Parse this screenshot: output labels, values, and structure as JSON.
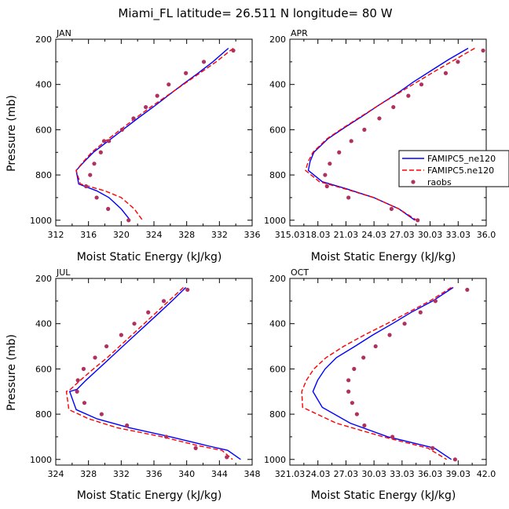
{
  "title": "Miami_FL  latitude= 26.511 N longitude= 80 W",
  "ylabel": "Pressure (mb)",
  "xlabel": "Moist Static Energy (kJ/kg)",
  "legend": {
    "entries": [
      "FAMIPC5_ne120",
      "FAMIPC5.ne120",
      "raobs"
    ],
    "placement": "right of APR panel"
  },
  "colors": {
    "series1": "#0000ff",
    "series2": "#ff0000",
    "raobs": "#b03060"
  },
  "chart_data": [
    {
      "type": "line",
      "panel": "JAN",
      "xlabel": "Moist Static Energy (kJ/kg)",
      "ylabel": "Pressure (mb)",
      "xlim": [
        312,
        336
      ],
      "ylim": [
        200,
        1025
      ],
      "y_inverted": true,
      "xticks": [
        "312",
        "316",
        "320",
        "324",
        "328",
        "332",
        "336"
      ],
      "yticks": [
        200,
        400,
        600,
        800,
        1000
      ],
      "series": [
        {
          "name": "FAMIPC5_ne120",
          "style": "solid",
          "x": [
            333.1,
            331.2,
            329.4,
            327.5,
            325.7,
            323.9,
            322.0,
            320.2,
            318.4,
            316.6,
            315.5,
            314.5,
            314.8,
            317.0,
            318.5,
            320.0,
            321.1
          ],
          "y": [
            240,
            300,
            350,
            400,
            450,
            500,
            550,
            600,
            650,
            700,
            740,
            780,
            840,
            870,
            900,
            950,
            1000
          ]
        },
        {
          "name": "FAMIPC5.ne120",
          "style": "dashed",
          "x": [
            333.7,
            331.6,
            329.6,
            327.6,
            325.6,
            323.6,
            321.7,
            319.9,
            318.1,
            316.4,
            315.4,
            314.5,
            315.0,
            318.0,
            320.0,
            321.6,
            322.6
          ],
          "y": [
            240,
            300,
            350,
            400,
            450,
            500,
            550,
            600,
            650,
            700,
            740,
            780,
            840,
            870,
            900,
            950,
            1000
          ]
        },
        {
          "name": "raobs",
          "style": "markers",
          "x": [
            333.7,
            330.1,
            327.9,
            325.8,
            324.4,
            323.0,
            321.5,
            320.1,
            318.5,
            317.9,
            317.5,
            316.7,
            316.2,
            315.7,
            317.0,
            318.4,
            320.9
          ],
          "y": [
            250,
            300,
            350,
            400,
            450,
            500,
            550,
            600,
            650,
            650,
            700,
            750,
            800,
            850,
            900,
            950,
            1000
          ]
        }
      ]
    },
    {
      "type": "line",
      "panel": "APR",
      "xlabel": "Moist Static Energy (kJ/kg)",
      "ylabel": "Pressure (mb)",
      "xlim": [
        315.03,
        336.03
      ],
      "ylim": [
        200,
        1025
      ],
      "y_inverted": true,
      "xticks": [
        "315.03",
        "18.03",
        "21.03",
        "24.03",
        "27.03",
        "30.03",
        "33.03",
        "36.0"
      ],
      "yticks": [
        200,
        400,
        600,
        800,
        1000
      ],
      "series": [
        {
          "name": "FAMIPC5_ne120",
          "style": "solid",
          "x": [
            334.1,
            332.0,
            330.1,
            328.2,
            326.5,
            324.6,
            322.8,
            320.9,
            319.1,
            317.6,
            317.2,
            317.0,
            318.5,
            321.0,
            324.0,
            326.7,
            328.4
          ],
          "y": [
            240,
            290,
            340,
            390,
            440,
            490,
            540,
            590,
            640,
            700,
            740,
            780,
            830,
            860,
            900,
            950,
            1000
          ]
        },
        {
          "name": "FAMIPC5.ne120",
          "style": "dashed",
          "x": [
            334.8,
            332.7,
            330.6,
            328.6,
            326.6,
            324.6,
            322.7,
            320.8,
            319.0,
            317.5,
            317.0,
            316.7,
            318.2,
            320.8,
            324.0,
            326.7,
            328.6
          ],
          "y": [
            240,
            290,
            340,
            390,
            440,
            490,
            540,
            590,
            640,
            700,
            740,
            780,
            830,
            860,
            900,
            950,
            1000
          ]
        },
        {
          "name": "raobs",
          "style": "markers",
          "x": [
            335.7,
            333.0,
            331.7,
            329.1,
            327.7,
            326.1,
            324.6,
            323.0,
            321.6,
            320.3,
            319.3,
            318.8,
            319.0,
            321.3,
            325.9,
            328.7
          ],
          "y": [
            250,
            300,
            350,
            400,
            450,
            500,
            550,
            600,
            650,
            700,
            750,
            800,
            850,
            900,
            950,
            1000
          ]
        }
      ]
    },
    {
      "type": "line",
      "panel": "JUL",
      "xlabel": "Moist Static Energy (kJ/kg)",
      "ylabel": "Pressure (mb)",
      "xlim": [
        324,
        348
      ],
      "ylim": [
        200,
        1025
      ],
      "y_inverted": true,
      "xticks": [
        "324",
        "328",
        "332",
        "336",
        "340",
        "344",
        "348"
      ],
      "yticks": [
        200,
        400,
        600,
        800,
        1000
      ],
      "series": [
        {
          "name": "FAMIPC5_ne120",
          "style": "solid",
          "x": [
            339.9,
            338.2,
            336.7,
            335.2,
            333.7,
            332.2,
            330.7,
            329.2,
            327.7,
            326.6,
            325.7,
            326.5,
            329.0,
            333.0,
            338.0,
            342.6,
            345.0,
            346.6
          ],
          "y": [
            240,
            300,
            350,
            400,
            450,
            500,
            550,
            600,
            650,
            690,
            700,
            780,
            820,
            860,
            900,
            940,
            960,
            1000
          ]
        },
        {
          "name": "FAMIPC5.ne120",
          "style": "dashed",
          "x": [
            339.6,
            337.8,
            336.3,
            334.8,
            333.3,
            331.8,
            330.3,
            328.6,
            327.0,
            325.8,
            325.3,
            325.6,
            328.0,
            331.5,
            337.0,
            341.5,
            344.3,
            345.6
          ],
          "y": [
            240,
            300,
            350,
            400,
            450,
            500,
            550,
            600,
            650,
            690,
            700,
            780,
            820,
            860,
            900,
            940,
            960,
            1000
          ]
        },
        {
          "name": "raobs",
          "style": "markers",
          "x": [
            340.1,
            337.2,
            335.3,
            333.6,
            332.0,
            330.2,
            328.8,
            327.4,
            326.7,
            326.6,
            327.5,
            329.6,
            332.7,
            337.5,
            341.1,
            344.9
          ],
          "y": [
            250,
            300,
            350,
            400,
            450,
            500,
            550,
            600,
            650,
            700,
            750,
            800,
            850,
            900,
            950,
            990
          ]
        }
      ]
    },
    {
      "type": "line",
      "panel": "OCT",
      "xlabel": "Moist Static Energy (kJ/kg)",
      "ylabel": "Pressure (mb)",
      "xlim": [
        321.03,
        342.03
      ],
      "ylim": [
        200,
        1025
      ],
      "y_inverted": true,
      "xticks": [
        "321.03",
        "24.03",
        "27.03",
        "30.03",
        "33.03",
        "36.03",
        "39.03",
        "42.0"
      ],
      "yticks": [
        200,
        400,
        600,
        800,
        1000
      ],
      "series": [
        {
          "name": "FAMIPC5_ne120",
          "style": "solid",
          "x": [
            338.5,
            336.3,
            334.0,
            332.0,
            329.9,
            328.0,
            326.0,
            324.8,
            324.0,
            323.5,
            324.5,
            327.5,
            331.5,
            336.5,
            338.3
          ],
          "y": [
            240,
            300,
            350,
            400,
            450,
            500,
            550,
            600,
            650,
            700,
            770,
            840,
            900,
            950,
            1000
          ]
        },
        {
          "name": "FAMIPC5.ne120",
          "style": "dashed",
          "x": [
            338.3,
            336.0,
            333.7,
            331.4,
            329.0,
            326.8,
            324.9,
            323.6,
            322.8,
            322.3,
            322.4,
            326.0,
            331.0,
            335.8,
            337.8
          ],
          "y": [
            240,
            300,
            350,
            400,
            450,
            500,
            550,
            600,
            650,
            700,
            770,
            840,
            900,
            950,
            1000
          ]
        },
        {
          "name": "raobs",
          "style": "markers",
          "x": [
            340.0,
            336.6,
            335.0,
            333.3,
            331.7,
            330.2,
            328.9,
            327.9,
            327.3,
            327.3,
            327.7,
            328.2,
            329.0,
            332.0,
            336.3,
            338.7
          ],
          "y": [
            250,
            300,
            350,
            400,
            450,
            500,
            550,
            600,
            650,
            700,
            750,
            800,
            850,
            900,
            950,
            1000
          ]
        }
      ]
    }
  ]
}
